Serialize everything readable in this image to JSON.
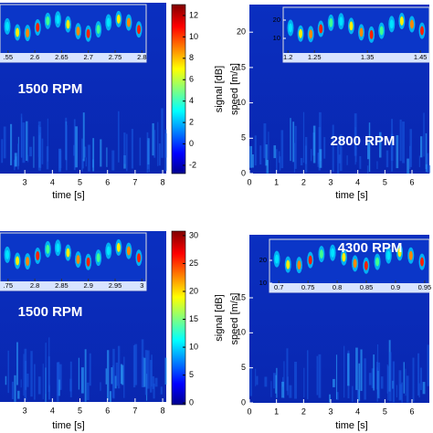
{
  "chart_data": [
    {
      "type": "spectrogram",
      "annotation": "1500 RPM",
      "xlabel": "time [s]",
      "xlim": [
        2.1,
        8.13
      ],
      "xticks": [
        3,
        4,
        5,
        6,
        7,
        8
      ],
      "inset": {
        "xlim": [
          2.535,
          2.808
        ],
        "xticks": [
          {
            "value": 2.55,
            "label": ".55"
          },
          2.6,
          2.65,
          2.7,
          2.75,
          2.8
        ]
      },
      "colorbar": {
        "label": "signal [dB]",
        "lim": [
          -2.77,
          13.02
        ],
        "ticks": [
          -2,
          0,
          2,
          4,
          6,
          8,
          10,
          12
        ]
      }
    },
    {
      "type": "spectrogram",
      "annotation": "2800 RPM",
      "xlabel": "time [s]",
      "ylabel": "speed [m/s]",
      "xlim": [
        0,
        6.64
      ],
      "xticks": [
        0,
        1,
        2,
        3,
        4,
        5,
        6
      ],
      "ylim": [
        0,
        23.9
      ],
      "yticks": [
        0,
        5,
        10,
        15,
        20
      ],
      "inset": {
        "xlim": [
          1.191,
          1.467
        ],
        "xticks": [
          1.2,
          1.25,
          1.35,
          1.45
        ],
        "ylim": [
          -3,
          27
        ],
        "yticks": [
          10,
          20
        ]
      }
    },
    {
      "type": "spectrogram",
      "annotation": "1500 RPM",
      "xlabel": "time [s]",
      "xlim": [
        2.1,
        8.13
      ],
      "xticks": [
        3,
        4,
        5,
        6,
        7,
        8
      ],
      "inset": {
        "xlim": [
          2.735,
          3.008
        ],
        "xticks": [
          {
            "value": 2.75,
            "label": ".75"
          },
          2.8,
          2.85,
          2.9,
          2.95,
          3
        ]
      },
      "colorbar": {
        "label": "signal [dB]",
        "lim": [
          -0.3,
          30.8
        ],
        "ticks": [
          0,
          5,
          10,
          15,
          20,
          25,
          30
        ]
      }
    },
    {
      "type": "spectrogram",
      "annotation": "4300 RPM",
      "xlabel": "time [s]",
      "ylabel": "speed [m/s]",
      "xlim": [
        0,
        6.64
      ],
      "xticks": [
        0,
        1,
        2,
        3,
        4,
        5,
        6
      ],
      "ylim": [
        0,
        24
      ],
      "yticks": [
        0,
        5,
        10,
        15
      ],
      "inset": {
        "xlim": [
          0.684,
          0.958
        ],
        "xticks": [
          0.7,
          0.75,
          0.8,
          0.85,
          0.9,
          0.95
        ],
        "ylim": [
          6,
          29.2
        ],
        "yticks": [
          10,
          20
        ]
      }
    }
  ]
}
